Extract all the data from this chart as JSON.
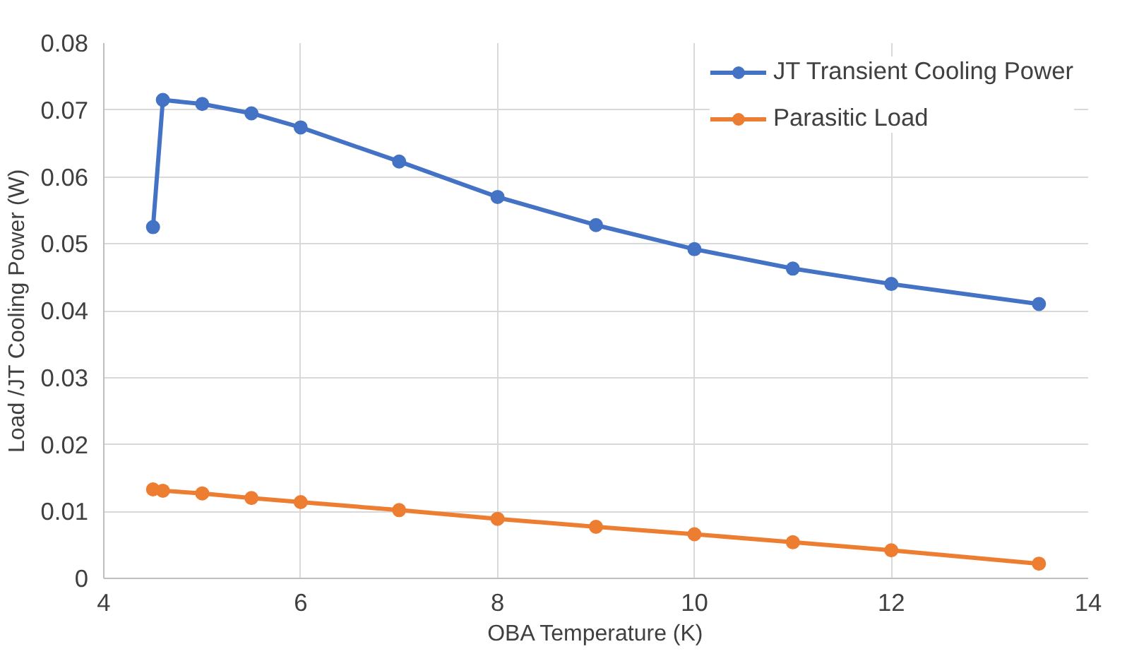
{
  "chart_data": {
    "type": "line",
    "xlabel": "OBA Temperature (K)",
    "ylabel": "Load /JT Cooling Power (W)",
    "xlim": [
      4,
      14
    ],
    "xticks": [
      4,
      6,
      8,
      10,
      12,
      14
    ],
    "ylim": [
      0,
      0.08
    ],
    "yticks": [
      0,
      0.01,
      0.02,
      0.03,
      0.04,
      0.05,
      0.06,
      0.07,
      0.08
    ],
    "x": [
      4.5,
      4.6,
      5,
      5.5,
      6,
      7,
      8,
      9,
      10,
      11,
      12,
      13.5
    ],
    "series": [
      {
        "name": "JT Transient Cooling Power",
        "color": "#4472c4",
        "values": [
          0.0525,
          0.0715,
          0.0709,
          0.0695,
          0.0674,
          0.0623,
          0.057,
          0.0528,
          0.0492,
          0.0463,
          0.044,
          0.041
        ]
      },
      {
        "name": "Parasitic Load",
        "color": "#ed7d31",
        "values": [
          0.0133,
          0.0131,
          0.0127,
          0.012,
          0.0114,
          0.0102,
          0.0089,
          0.0077,
          0.0066,
          0.0054,
          0.0042,
          0.0022
        ]
      }
    ],
    "grid": true,
    "legend": "top right",
    "marker": "circle",
    "line_style": "solid"
  }
}
